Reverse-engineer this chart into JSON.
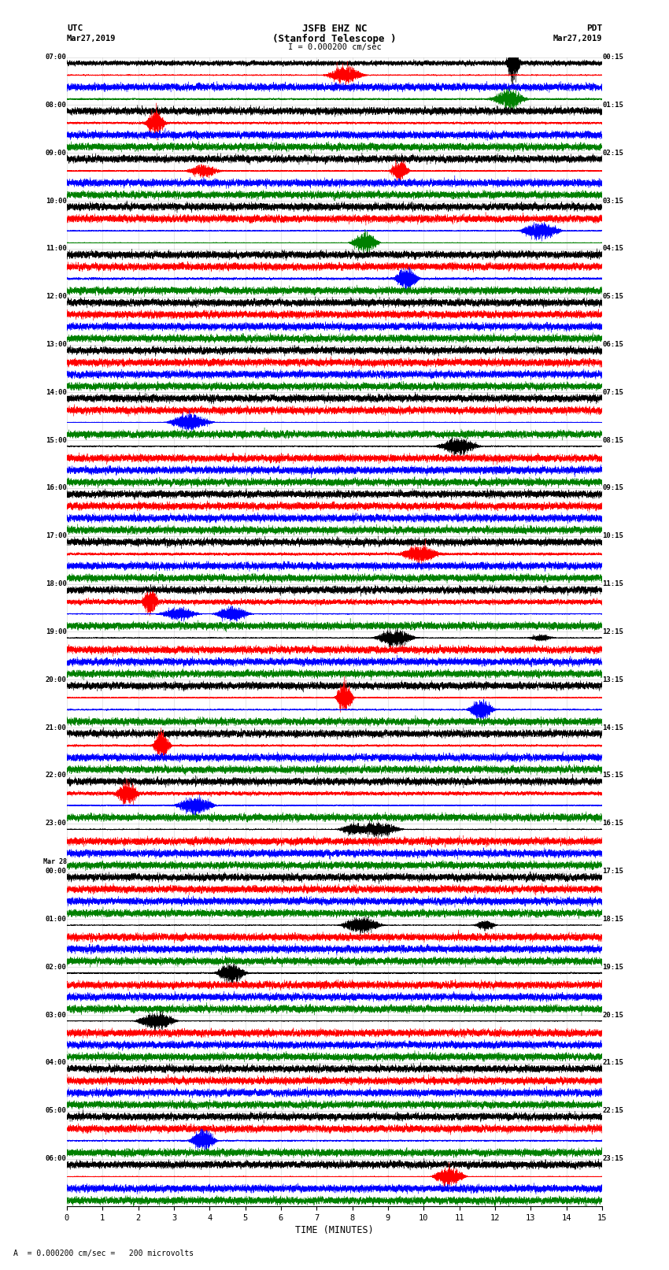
{
  "title_line1": "JSFB EHZ NC",
  "title_line2": "(Stanford Telescope )",
  "scale_label": "I = 0.000200 cm/sec",
  "left_label_top": "UTC",
  "left_label_date": "Mar27,2019",
  "right_label_top": "PDT",
  "right_label_date": "Mar27,2019",
  "bottom_label": "TIME (MINUTES)",
  "footer_label": "A  = 0.000200 cm/sec =   200 microvolts",
  "left_times": [
    "07:00",
    "08:00",
    "09:00",
    "10:00",
    "11:00",
    "12:00",
    "13:00",
    "14:00",
    "15:00",
    "16:00",
    "17:00",
    "18:00",
    "19:00",
    "20:00",
    "21:00",
    "22:00",
    "23:00",
    "Mar 28\n00:00",
    "01:00",
    "02:00",
    "03:00",
    "04:00",
    "05:00",
    "06:00"
  ],
  "right_times": [
    "00:15",
    "01:15",
    "02:15",
    "03:15",
    "04:15",
    "05:15",
    "06:15",
    "07:15",
    "08:15",
    "09:15",
    "10:15",
    "11:15",
    "12:15",
    "13:15",
    "14:15",
    "15:15",
    "16:15",
    "17:15",
    "18:15",
    "19:15",
    "20:15",
    "21:15",
    "22:15",
    "23:15"
  ],
  "n_hour_blocks": 24,
  "traces_per_block": 4,
  "colors": [
    "black",
    "red",
    "blue",
    "green"
  ],
  "minutes": 15,
  "bg_color": "#ffffff",
  "vline_color": "#aaaaaa",
  "vline_alpha": 0.5
}
